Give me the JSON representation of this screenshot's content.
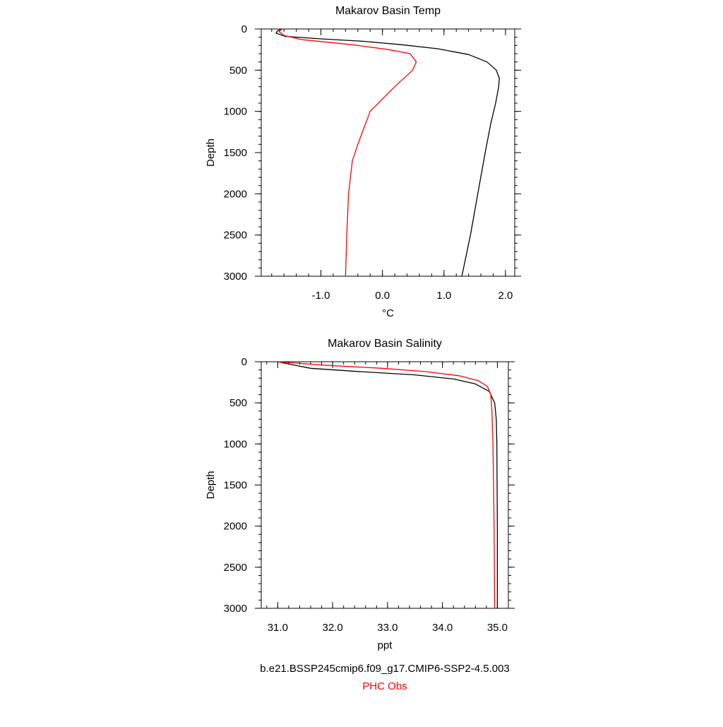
{
  "chart_data": [
    {
      "type": "line",
      "title": "Makarov Basin Temp",
      "xlabel": "°C",
      "ylabel": "Depth",
      "xlim": [
        -1.97,
        2.15
      ],
      "ylim": [
        3000,
        0
      ],
      "x_ticks": [
        -1.0,
        0.0,
        1.0,
        2.0
      ],
      "x_tick_labels": [
        "-1.0",
        "0.0",
        "1.0",
        "2.0"
      ],
      "y_ticks": [
        0,
        500,
        1000,
        1500,
        2000,
        2500,
        3000
      ],
      "y_tick_labels": [
        "0",
        "500",
        "1000",
        "1500",
        "2000",
        "2500",
        "3000"
      ],
      "series": [
        {
          "name": "b.e21.BSSP245cmip6.f09_g17.CMIP6-SSP2-4.5.003",
          "color": "#000000",
          "points": [
            [
              -1.63,
              0
            ],
            [
              -1.7,
              20
            ],
            [
              -1.73,
              50
            ],
            [
              -1.58,
              90
            ],
            [
              -1.0,
              120
            ],
            [
              -0.3,
              150
            ],
            [
              0.3,
              190
            ],
            [
              0.9,
              240
            ],
            [
              1.4,
              310
            ],
            [
              1.7,
              400
            ],
            [
              1.85,
              500
            ],
            [
              1.9,
              600
            ],
            [
              1.89,
              700
            ],
            [
              1.84,
              900
            ],
            [
              1.76,
              1150
            ],
            [
              1.67,
              1500
            ],
            [
              1.55,
              2000
            ],
            [
              1.43,
              2500
            ],
            [
              1.29,
              3000
            ]
          ]
        },
        {
          "name": "PHC Obs",
          "color": "#ff0000",
          "points": [
            [
              -1.63,
              0
            ],
            [
              -1.68,
              30
            ],
            [
              -1.6,
              80
            ],
            [
              -1.3,
              130
            ],
            [
              -0.5,
              190
            ],
            [
              0.1,
              250
            ],
            [
              0.45,
              300
            ],
            [
              0.55,
              400
            ],
            [
              0.49,
              500
            ],
            [
              0.2,
              700
            ],
            [
              -0.2,
              1000
            ],
            [
              -0.4,
              1400
            ],
            [
              -0.49,
              1600
            ],
            [
              -0.55,
              2000
            ],
            [
              -0.58,
              2500
            ],
            [
              -0.6,
              3000
            ]
          ]
        }
      ]
    },
    {
      "type": "line",
      "title": "Makarov Basin Salinity",
      "xlabel": "ppt",
      "ylabel": "Depth",
      "xlim": [
        30.7,
        35.2
      ],
      "ylim": [
        3000,
        0
      ],
      "x_ticks": [
        31.0,
        32.0,
        33.0,
        34.0,
        35.0
      ],
      "x_tick_labels": [
        "31.0",
        "32.0",
        "33.0",
        "34.0",
        "35.0"
      ],
      "y_ticks": [
        0,
        500,
        1000,
        1500,
        2000,
        2500,
        3000
      ],
      "y_tick_labels": [
        "0",
        "500",
        "1000",
        "1500",
        "2000",
        "2500",
        "3000"
      ],
      "series": [
        {
          "name": "b.e21.BSSP245cmip6.f09_g17.CMIP6-SSP2-4.5.003",
          "color": "#000000",
          "points": [
            [
              31.0,
              0
            ],
            [
              31.3,
              40
            ],
            [
              31.6,
              80
            ],
            [
              32.5,
              120
            ],
            [
              33.5,
              160
            ],
            [
              34.2,
              210
            ],
            [
              34.6,
              270
            ],
            [
              34.85,
              360
            ],
            [
              34.95,
              500
            ],
            [
              34.98,
              700
            ],
            [
              34.99,
              1000
            ],
            [
              35.0,
              2000
            ],
            [
              35.0,
              3000
            ]
          ]
        },
        {
          "name": "PHC Obs",
          "color": "#ff0000",
          "points": [
            [
              31.0,
              0
            ],
            [
              31.8,
              40
            ],
            [
              32.9,
              80
            ],
            [
              33.7,
              120
            ],
            [
              34.3,
              170
            ],
            [
              34.65,
              230
            ],
            [
              34.82,
              300
            ],
            [
              34.88,
              400
            ],
            [
              34.9,
              600
            ],
            [
              34.92,
              1000
            ],
            [
              34.93,
              1500
            ],
            [
              34.94,
              2000
            ],
            [
              34.95,
              3000
            ]
          ]
        }
      ]
    }
  ],
  "legend": {
    "model_label": "b.e21.BSSP245cmip6.f09_g17.CMIP6-SSP2-4.5.003",
    "model_color": "#000000",
    "obs_label": "PHC Obs",
    "obs_color": "#ff0000"
  }
}
